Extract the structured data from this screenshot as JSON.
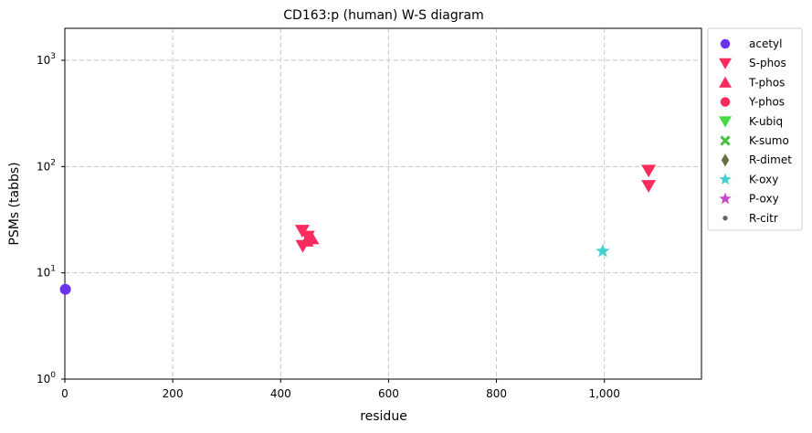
{
  "chart_data": {
    "type": "scatter",
    "title": "CD163:p (human) W-S diagram",
    "xlabel": "residue",
    "ylabel": "PSMs (tabbs)",
    "xlim": [
      0,
      1180
    ],
    "ylim": [
      1,
      2000
    ],
    "y_scale": "log",
    "grid": true,
    "legend_position": "outside-right",
    "x_ticks": [
      0,
      200,
      400,
      600,
      800,
      1000
    ],
    "x_tick_labels": [
      "0",
      "200",
      "400",
      "600",
      "800",
      "1,000"
    ],
    "y_ticks": [
      1,
      10,
      100,
      1000
    ],
    "y_tick_labels": [
      "10",
      "10",
      "10",
      "10"
    ],
    "y_tick_exponents": [
      "0",
      "1",
      "2",
      "3"
    ],
    "series": [
      {
        "name": "acetyl",
        "marker": "circle",
        "color": "#6a33f2",
        "points": [
          {
            "x": 1,
            "y": 7
          }
        ]
      },
      {
        "name": "S-phos",
        "marker": "triangle-down",
        "color": "#fa2c5e",
        "points": [
          {
            "x": 440,
            "y": 25
          },
          {
            "x": 450,
            "y": 22
          },
          {
            "x": 441,
            "y": 18
          },
          {
            "x": 1082,
            "y": 92
          },
          {
            "x": 1082,
            "y": 66
          }
        ]
      },
      {
        "name": "T-phos",
        "marker": "triangle-up",
        "color": "#fa2c5e",
        "points": [
          {
            "x": 458,
            "y": 21
          },
          {
            "x": 448,
            "y": 20
          }
        ]
      },
      {
        "name": "Y-phos",
        "marker": "circle",
        "color": "#fa2c5e",
        "points": []
      },
      {
        "name": "K-ubiq",
        "marker": "triangle-down",
        "color": "#46d946",
        "points": []
      },
      {
        "name": "K-sumo",
        "marker": "x",
        "color": "#43c03c",
        "points": []
      },
      {
        "name": "R-dimet",
        "marker": "diamond",
        "color": "#6b6b45",
        "points": []
      },
      {
        "name": "K-oxy",
        "marker": "star",
        "color": "#42d0cf",
        "points": [
          {
            "x": 997,
            "y": 16
          }
        ]
      },
      {
        "name": "P-oxy",
        "marker": "star",
        "color": "#cb45cb",
        "points": []
      },
      {
        "name": "R-citr",
        "marker": "small-circle",
        "color": "#666666",
        "points": []
      }
    ]
  }
}
